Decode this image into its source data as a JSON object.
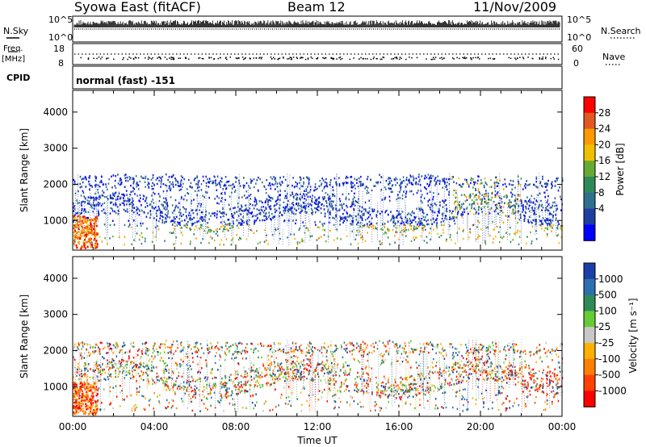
{
  "header": {
    "station": "Syowa East (fitACF)",
    "beam": "Beam 12",
    "date": "11/Nov/2009"
  },
  "noise_panel": {
    "left_label": "N.Sky",
    "right_label": "N.Search",
    "ticks_left": [
      "10^5",
      "10^0"
    ],
    "ticks_right": [
      "10^5",
      "10^0"
    ]
  },
  "freq_panel": {
    "left_label_1": "Freq.",
    "left_label_2": "[MHz]",
    "right_label": "Nave",
    "ticks_left": [
      "18",
      "8"
    ],
    "ticks_right": [
      "60",
      "0"
    ]
  },
  "cpid": {
    "label": "CPID",
    "value": "normal (fast) -151"
  },
  "x_axis": {
    "label": "Time UT",
    "ticks": [
      "00:00",
      "04:00",
      "08:00",
      "12:00",
      "16:00",
      "20:00",
      "00:00"
    ]
  },
  "chart_data": [
    {
      "type": "heatmap",
      "name": "power",
      "ylabel": "Slant Range [km]",
      "yticks": [
        1000,
        2000,
        3000,
        4000
      ],
      "ylim": [
        180,
        4600
      ],
      "xlim_hours": [
        0,
        24
      ],
      "colorbar": {
        "label": "Power [dB]",
        "ticks": [
          "28",
          "24",
          "20",
          "16",
          "12",
          "8",
          "4"
        ],
        "colors": [
          "#ff0000",
          "#e25822",
          "#ff9900",
          "#f0c000",
          "#66aa33",
          "#2e8b57",
          "#2f6f8f",
          "#1e3fa0",
          "#0000ff"
        ]
      }
    },
    {
      "type": "heatmap",
      "name": "velocity",
      "ylabel": "Slant Range [km]",
      "yticks": [
        1000,
        2000,
        3000,
        4000
      ],
      "ylim": [
        180,
        4600
      ],
      "xlim_hours": [
        0,
        24
      ],
      "colorbar": {
        "label": "Velocity [m s⁻¹]",
        "ticks": [
          "1000",
          "500",
          "100",
          "25",
          "-25",
          "-100",
          "-500",
          "-1000"
        ],
        "colors": [
          "#1a3fa8",
          "#2e6fb0",
          "#2e8b57",
          "#66cc33",
          "#c8c8c8",
          "#ffb000",
          "#ff8000",
          "#ff4000",
          "#ff0000"
        ]
      }
    }
  ]
}
